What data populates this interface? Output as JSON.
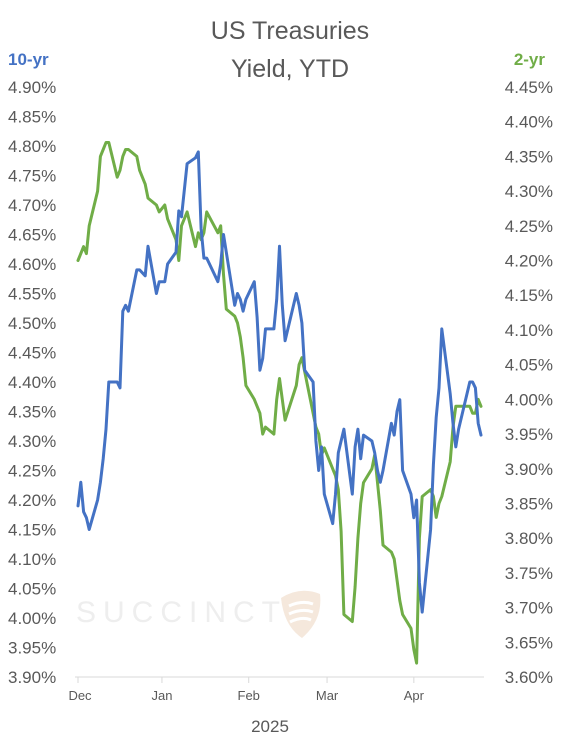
{
  "chart_data": {
    "type": "line",
    "title_lines": [
      "US Treasuries",
      "Yield, YTD"
    ],
    "xlabel": "2025",
    "x_ticks": [
      "Dec",
      "Jan",
      "Feb",
      "Mar",
      "Apr"
    ],
    "left_axis": {
      "title": "10-yr",
      "ylim": [
        3.9,
        4.9
      ],
      "ticks": [
        "3.90%",
        "3.95%",
        "4.00%",
        "4.05%",
        "4.10%",
        "4.15%",
        "4.20%",
        "4.25%",
        "4.30%",
        "4.35%",
        "4.40%",
        "4.45%",
        "4.50%",
        "4.55%",
        "4.60%",
        "4.65%",
        "4.70%",
        "4.75%",
        "4.80%",
        "4.85%",
        "4.90%"
      ]
    },
    "right_axis": {
      "title": "2-yr",
      "ylim": [
        3.6,
        4.45
      ],
      "ticks": [
        "3.60%",
        "3.65%",
        "3.70%",
        "3.75%",
        "3.80%",
        "3.85%",
        "3.90%",
        "3.95%",
        "4.00%",
        "4.05%",
        "4.10%",
        "4.15%",
        "4.20%",
        "4.25%",
        "4.30%",
        "4.35%",
        "4.40%",
        "4.45%"
      ]
    },
    "x_range": [
      "2024-12-02",
      "2025-04-25"
    ],
    "series": [
      {
        "name": "10-yr",
        "axis": "left",
        "color": "#4472c4",
        "x": [
          "2024-12-02",
          "2024-12-03",
          "2024-12-04",
          "2024-12-05",
          "2024-12-06",
          "2024-12-09",
          "2024-12-10",
          "2024-12-11",
          "2024-12-12",
          "2024-12-13",
          "2024-12-16",
          "2024-12-17",
          "2024-12-18",
          "2024-12-19",
          "2024-12-20",
          "2024-12-23",
          "2024-12-24",
          "2024-12-26",
          "2024-12-27",
          "2024-12-30",
          "2024-12-31",
          "2025-01-02",
          "2025-01-03",
          "2025-01-06",
          "2025-01-07",
          "2025-01-08",
          "2025-01-10",
          "2025-01-13",
          "2025-01-14",
          "2025-01-15",
          "2025-01-16",
          "2025-01-17",
          "2025-01-21",
          "2025-01-22",
          "2025-01-23",
          "2025-01-24",
          "2025-01-27",
          "2025-01-28",
          "2025-01-29",
          "2025-01-30",
          "2025-01-31",
          "2025-02-03",
          "2025-02-04",
          "2025-02-05",
          "2025-02-06",
          "2025-02-07",
          "2025-02-10",
          "2025-02-11",
          "2025-02-12",
          "2025-02-13",
          "2025-02-14",
          "2025-02-18",
          "2025-02-19",
          "2025-02-20",
          "2025-02-21",
          "2025-02-24",
          "2025-02-25",
          "2025-02-26",
          "2025-02-27",
          "2025-02-28",
          "2025-03-03",
          "2025-03-04",
          "2025-03-05",
          "2025-03-06",
          "2025-03-07",
          "2025-03-10",
          "2025-03-11",
          "2025-03-12",
          "2025-03-13",
          "2025-03-14",
          "2025-03-17",
          "2025-03-18",
          "2025-03-19",
          "2025-03-20",
          "2025-03-21",
          "2025-03-24",
          "2025-03-25",
          "2025-03-26",
          "2025-03-27",
          "2025-03-28",
          "2025-03-31",
          "2025-04-01",
          "2025-04-02",
          "2025-04-03",
          "2025-04-04",
          "2025-04-07",
          "2025-04-08",
          "2025-04-09",
          "2025-04-10",
          "2025-04-11",
          "2025-04-14",
          "2025-04-15",
          "2025-04-16",
          "2025-04-17",
          "2025-04-21",
          "2025-04-22",
          "2025-04-23",
          "2025-04-24",
          "2025-04-25"
        ],
        "values": [
          4.19,
          4.23,
          4.18,
          4.17,
          4.15,
          4.2,
          4.23,
          4.27,
          4.32,
          4.4,
          4.4,
          4.39,
          4.52,
          4.53,
          4.52,
          4.59,
          4.59,
          4.58,
          4.63,
          4.55,
          4.57,
          4.57,
          4.6,
          4.62,
          4.69,
          4.68,
          4.77,
          4.78,
          4.79,
          4.66,
          4.61,
          4.61,
          4.57,
          4.6,
          4.65,
          4.62,
          4.53,
          4.55,
          4.54,
          4.52,
          4.54,
          4.57,
          4.51,
          4.42,
          4.44,
          4.49,
          4.49,
          4.54,
          4.63,
          4.53,
          4.47,
          4.55,
          4.53,
          4.5,
          4.42,
          4.4,
          4.3,
          4.25,
          4.29,
          4.21,
          4.16,
          4.21,
          4.28,
          4.3,
          4.32,
          4.21,
          4.29,
          4.32,
          4.27,
          4.31,
          4.3,
          4.28,
          4.25,
          4.23,
          4.25,
          4.33,
          4.31,
          4.35,
          4.37,
          4.25,
          4.21,
          4.17,
          4.2,
          4.06,
          4.01,
          4.15,
          4.26,
          4.34,
          4.39,
          4.49,
          4.38,
          4.33,
          4.29,
          4.32,
          4.4,
          4.4,
          4.39,
          4.33,
          4.31
        ]
      },
      {
        "name": "2-yr",
        "axis": "right",
        "color": "#70ad47",
        "x": [
          "2024-12-02",
          "2024-12-03",
          "2024-12-04",
          "2024-12-05",
          "2024-12-06",
          "2024-12-09",
          "2024-12-10",
          "2024-12-11",
          "2024-12-12",
          "2024-12-13",
          "2024-12-16",
          "2024-12-17",
          "2024-12-18",
          "2024-12-19",
          "2024-12-20",
          "2024-12-23",
          "2024-12-24",
          "2024-12-26",
          "2024-12-27",
          "2024-12-30",
          "2024-12-31",
          "2025-01-02",
          "2025-01-03",
          "2025-01-06",
          "2025-01-07",
          "2025-01-08",
          "2025-01-10",
          "2025-01-13",
          "2025-01-14",
          "2025-01-15",
          "2025-01-16",
          "2025-01-17",
          "2025-01-21",
          "2025-01-22",
          "2025-01-23",
          "2025-01-24",
          "2025-01-27",
          "2025-01-28",
          "2025-01-29",
          "2025-01-30",
          "2025-01-31",
          "2025-02-03",
          "2025-02-04",
          "2025-02-05",
          "2025-02-06",
          "2025-02-07",
          "2025-02-10",
          "2025-02-11",
          "2025-02-12",
          "2025-02-13",
          "2025-02-14",
          "2025-02-18",
          "2025-02-19",
          "2025-02-20",
          "2025-02-21",
          "2025-02-24",
          "2025-02-25",
          "2025-02-26",
          "2025-02-27",
          "2025-02-28",
          "2025-03-03",
          "2025-03-04",
          "2025-03-05",
          "2025-03-06",
          "2025-03-07",
          "2025-03-10",
          "2025-03-11",
          "2025-03-12",
          "2025-03-13",
          "2025-03-14",
          "2025-03-17",
          "2025-03-18",
          "2025-03-19",
          "2025-03-20",
          "2025-03-21",
          "2025-03-24",
          "2025-03-25",
          "2025-03-26",
          "2025-03-27",
          "2025-03-28",
          "2025-03-31",
          "2025-04-01",
          "2025-04-02",
          "2025-04-03",
          "2025-04-04",
          "2025-04-07",
          "2025-04-08",
          "2025-04-09",
          "2025-04-10",
          "2025-04-11",
          "2025-04-14",
          "2025-04-15",
          "2025-04-16",
          "2025-04-17",
          "2025-04-21",
          "2025-04-22",
          "2025-04-23",
          "2025-04-24",
          "2025-04-25"
        ],
        "values": [
          4.2,
          4.21,
          4.22,
          4.21,
          4.25,
          4.3,
          4.35,
          4.36,
          4.37,
          4.37,
          4.32,
          4.33,
          4.35,
          4.36,
          4.36,
          4.35,
          4.33,
          4.31,
          4.29,
          4.28,
          4.27,
          4.28,
          4.26,
          4.23,
          4.2,
          4.25,
          4.27,
          4.22,
          4.24,
          4.23,
          4.24,
          4.27,
          4.24,
          4.25,
          4.18,
          4.13,
          4.12,
          4.11,
          4.09,
          4.06,
          4.02,
          4.0,
          3.99,
          3.98,
          3.95,
          3.96,
          3.95,
          4.0,
          4.03,
          4.0,
          3.97,
          4.02,
          4.05,
          4.06,
          4.04,
          3.98,
          3.96,
          3.95,
          3.92,
          3.93,
          3.9,
          3.89,
          3.87,
          3.81,
          3.69,
          3.68,
          3.73,
          3.8,
          3.85,
          3.88,
          3.9,
          3.92,
          3.88,
          3.84,
          3.79,
          3.78,
          3.77,
          3.74,
          3.71,
          3.69,
          3.67,
          3.64,
          3.62,
          3.8,
          3.86,
          3.87,
          3.86,
          3.83,
          3.85,
          3.86,
          3.91,
          3.96,
          3.99,
          3.99,
          3.99,
          3.98,
          3.98,
          4.0,
          3.99
        ]
      }
    ],
    "grid": false,
    "legend": "axis titles (top-left 10-yr, top-right 2-yr)"
  },
  "watermark": {
    "text": "SUCCINCT",
    "color": "#eeeeee"
  },
  "colors": {
    "ten_year": "#4472c4",
    "two_year": "#70ad47",
    "axis": "#595959",
    "axis_line": "#d9d9d9"
  }
}
